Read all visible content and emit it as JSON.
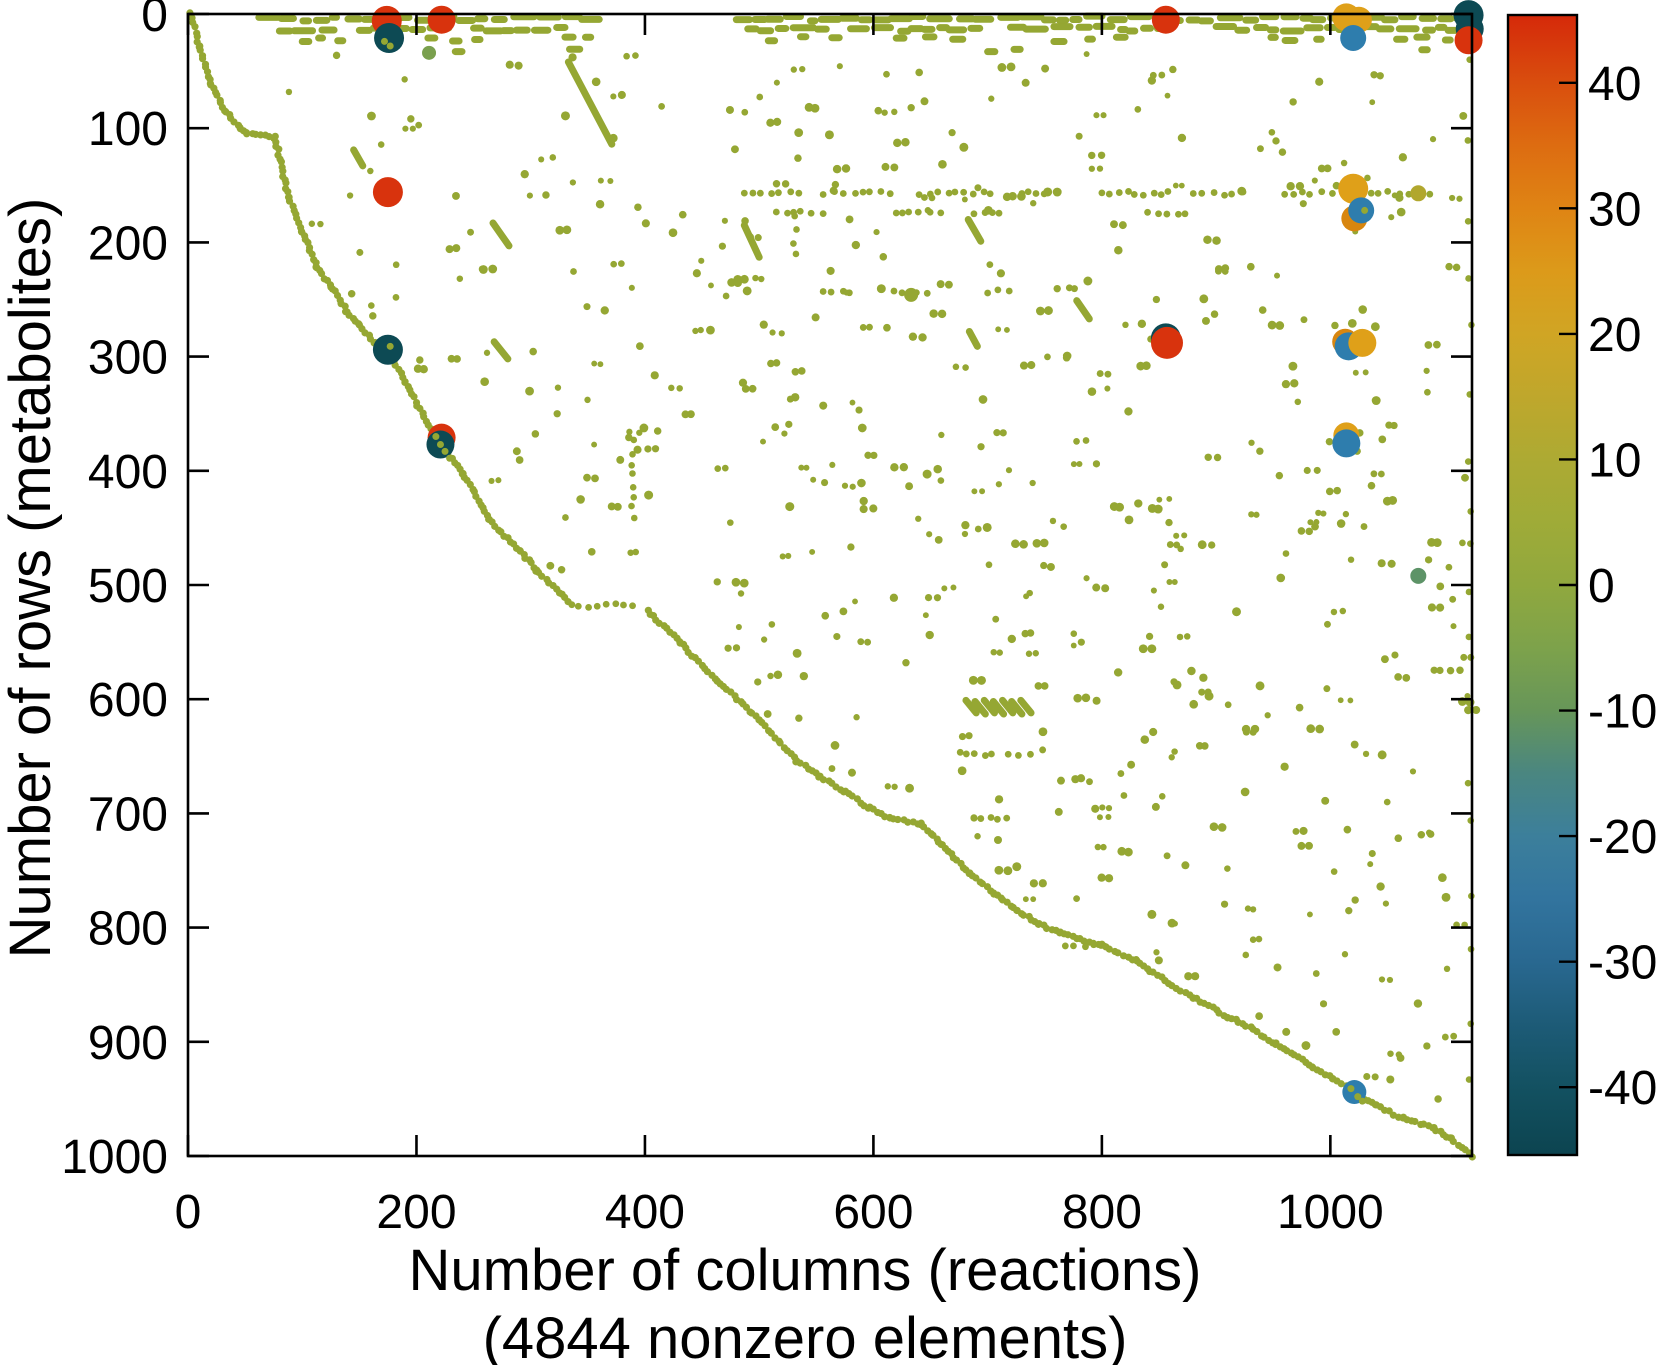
{
  "figure": {
    "background": "#ffffff",
    "text_color": "#000000",
    "xlabel_line1": "Number of columns (reactions)",
    "xlabel_line2": "(4844 nonzero elements)",
    "ylabel": "Number of rows (metabolites)",
    "nonzero_elements": 4844
  },
  "chart_data": {
    "type": "scatter",
    "title": "",
    "xlabel": "Number of columns (reactions) (4844 nonzero elements)",
    "ylabel": "Number of rows (metabolites)",
    "x_range": [
      0,
      1124
    ],
    "y_range": [
      0,
      1000
    ],
    "y_inverted": true,
    "x_ticks": [
      0,
      200,
      400,
      600,
      800,
      1000
    ],
    "y_ticks": [
      0,
      100,
      200,
      300,
      400,
      500,
      600,
      700,
      800,
      900,
      1000
    ],
    "grid": false,
    "legend_position": "none",
    "colorbar": {
      "vmin": -45.4,
      "vmax": 45.4,
      "ticks": [
        40,
        30,
        20,
        10,
        0,
        -10,
        -20,
        -30,
        -40
      ],
      "stops": [
        {
          "v": 45.4,
          "color": "#d5290a"
        },
        {
          "v": 40.0,
          "color": "#d94e0e"
        },
        {
          "v": 35.0,
          "color": "#dd6c11"
        },
        {
          "v": 30.0,
          "color": "#df8414"
        },
        {
          "v": 25.0,
          "color": "#dc9a1a"
        },
        {
          "v": 20.0,
          "color": "#d0a524"
        },
        {
          "v": 15.0,
          "color": "#bfa72c"
        },
        {
          "v": 10.0,
          "color": "#adaa33"
        },
        {
          "v": 5.0,
          "color": "#9fab38"
        },
        {
          "v": 0.0,
          "color": "#90a83e"
        },
        {
          "v": -5.0,
          "color": "#7da24b"
        },
        {
          "v": -10.0,
          "color": "#679659"
        },
        {
          "v": -15.0,
          "color": "#4a8680"
        },
        {
          "v": -20.0,
          "color": "#3c7f9b"
        },
        {
          "v": -25.0,
          "color": "#32749e"
        },
        {
          "v": -30.0,
          "color": "#296890"
        },
        {
          "v": -35.0,
          "color": "#1d5b77"
        },
        {
          "v": -40.0,
          "color": "#135161"
        },
        {
          "v": -45.4,
          "color": "#0c4450"
        }
      ]
    },
    "base_dot_color": "#95a733",
    "special_markers": [
      {
        "x": 174,
        "y": 6,
        "r": 15,
        "value": 45,
        "color": "#d8330d"
      },
      {
        "x": 176,
        "y": 21,
        "r": 15,
        "value": -45,
        "color": "#0d4a54"
      },
      {
        "x": 222,
        "y": 5,
        "r": 14,
        "value": 45,
        "color": "#d8330d"
      },
      {
        "x": 856,
        "y": 5,
        "r": 14,
        "value": 45,
        "color": "#d8330d"
      },
      {
        "x": 1014,
        "y": 3,
        "r": 14,
        "value": 20,
        "color": "#dfa019"
      },
      {
        "x": 1025,
        "y": 5,
        "r": 13,
        "value": 20,
        "color": "#dfa019"
      },
      {
        "x": 1020,
        "y": 21,
        "r": 13,
        "value": -25,
        "color": "#2e7dad"
      },
      {
        "x": 1121,
        "y": 1,
        "r": 15,
        "value": -45,
        "color": "#0d4a54"
      },
      {
        "x": 1122,
        "y": 13,
        "r": 14,
        "value": -45,
        "color": "#0d4a54"
      },
      {
        "x": 1121,
        "y": 23,
        "r": 14,
        "value": 45,
        "color": "#d8330d"
      },
      {
        "x": 175,
        "y": 156,
        "r": 15,
        "value": 45,
        "color": "#d8330d"
      },
      {
        "x": 1020,
        "y": 153,
        "r": 15,
        "value": 20,
        "color": "#dfa019"
      },
      {
        "x": 1021,
        "y": 179,
        "r": 13,
        "value": 17,
        "color": "#d8860f"
      },
      {
        "x": 1027,
        "y": 172,
        "r": 13,
        "value": -25,
        "color": "#2e7dad"
      },
      {
        "x": 175,
        "y": 294,
        "r": 15,
        "value": -45,
        "color": "#0d4a54"
      },
      {
        "x": 856,
        "y": 284,
        "r": 15,
        "value": -45,
        "color": "#0d4a54"
      },
      {
        "x": 857,
        "y": 288,
        "r": 16,
        "value": 45,
        "color": "#d8330d"
      },
      {
        "x": 1013,
        "y": 287,
        "r": 13,
        "value": 17,
        "color": "#d8860f"
      },
      {
        "x": 1016,
        "y": 291,
        "r": 14,
        "value": -25,
        "color": "#2e7dad"
      },
      {
        "x": 1028,
        "y": 288,
        "r": 14,
        "value": 20,
        "color": "#dfa019"
      },
      {
        "x": 222,
        "y": 371,
        "r": 14,
        "value": 45,
        "color": "#d8330d"
      },
      {
        "x": 221,
        "y": 377,
        "r": 14,
        "value": -45,
        "color": "#0d4a54"
      },
      {
        "x": 1014,
        "y": 369,
        "r": 13,
        "value": 20,
        "color": "#dfa019"
      },
      {
        "x": 1014,
        "y": 376,
        "r": 14,
        "value": -25,
        "color": "#2e7dad"
      },
      {
        "x": 1021,
        "y": 944,
        "r": 12,
        "value": -25,
        "color": "#2e7dad"
      },
      {
        "x": 1077,
        "y": 492,
        "r": 8,
        "value": -8,
        "color": "#5d9367"
      }
    ],
    "medium_dots": [
      {
        "x": 211,
        "y": 34,
        "r": 7,
        "color": "#7aa04e"
      },
      {
        "x": 1077,
        "y": 157,
        "r": 8,
        "color": "#b1a72e"
      },
      {
        "x": 633,
        "y": 246,
        "r": 7,
        "color": "#95a733"
      }
    ],
    "overlay_dots": [
      [
        172,
        24
      ],
      [
        177,
        28
      ],
      [
        177,
        291
      ],
      [
        217,
        370
      ],
      [
        221,
        377
      ],
      [
        225,
        383
      ],
      [
        229,
        389
      ],
      [
        1018,
        941
      ],
      [
        1024,
        948
      ],
      [
        1028,
        952
      ],
      [
        1030,
        172
      ]
    ],
    "diagonal_segments": [
      [
        [
          2,
          0
        ],
        [
          10,
          28
        ],
        [
          20,
          62
        ],
        [
          33,
          85
        ],
        [
          46,
          100
        ],
        [
          52,
          104
        ],
        [
          76,
          108
        ],
        [
          88,
          160
        ],
        [
          100,
          190
        ],
        [
          113,
          222
        ],
        [
          126,
          240
        ],
        [
          139,
          260
        ],
        [
          150,
          272
        ],
        [
          163,
          288
        ],
        [
          176,
          298
        ],
        [
          190,
          322
        ],
        [
          205,
          350
        ],
        [
          221,
          377
        ],
        [
          241,
          402
        ],
        [
          264,
          443
        ],
        [
          291,
          470
        ],
        [
          305,
          487
        ],
        [
          333,
          514
        ]
      ],
      [
        [
          402,
          522
        ],
        [
          430,
          550
        ],
        [
          464,
          584
        ],
        [
          500,
          618
        ],
        [
          533,
          654
        ],
        [
          553,
          668
        ],
        [
          575,
          681
        ],
        [
          596,
          695
        ],
        [
          614,
          704
        ],
        [
          642,
          709
        ],
        [
          660,
          728
        ],
        [
          684,
          752
        ],
        [
          705,
          770
        ],
        [
          726,
          785
        ],
        [
          745,
          797
        ],
        [
          763,
          805
        ],
        [
          800,
          815
        ],
        [
          830,
          829
        ],
        [
          855,
          846
        ],
        [
          880,
          861
        ],
        [
          910,
          878
        ],
        [
          930,
          888
        ],
        [
          952,
          902
        ],
        [
          985,
          922
        ],
        [
          1003,
          932
        ],
        [
          1021,
          944
        ],
        [
          1040,
          956
        ],
        [
          1063,
          967
        ],
        [
          1090,
          975
        ],
        [
          1105,
          985
        ],
        [
          1124,
          1000
        ]
      ]
    ],
    "band_rows": [
      {
        "row": 4,
        "spans": [
          [
            62,
            130
          ],
          [
            140,
            360
          ],
          [
            480,
            1124
          ]
        ],
        "style": "dense"
      },
      {
        "row": 13,
        "spans": [
          [
            80,
            130
          ],
          [
            150,
            232
          ],
          [
            250,
            330
          ],
          [
            490,
            560
          ],
          [
            580,
            700
          ],
          [
            720,
            860
          ],
          [
            900,
            1010
          ],
          [
            1030,
            1124
          ]
        ],
        "style": "dense"
      },
      {
        "row": 22,
        "spans": [
          [
            100,
            142
          ],
          [
            210,
            262
          ],
          [
            330,
            362
          ],
          [
            508,
            580
          ],
          [
            620,
            680
          ],
          [
            758,
            830
          ],
          [
            948,
            1020
          ],
          [
            1058,
            1120
          ]
        ],
        "style": "sparse"
      },
      {
        "row": 31,
        "spans": [
          [
            234,
            256
          ],
          [
            334,
            358
          ],
          [
            700,
            730
          ],
          [
            1080,
            1102
          ]
        ],
        "style": "sparse"
      }
    ],
    "dot_rows": [
      {
        "row": 157,
        "spans": [
          [
            487,
            540
          ],
          [
            556,
            622
          ],
          [
            640,
            706
          ],
          [
            730,
            762
          ],
          [
            800,
            860
          ],
          [
            880,
            932
          ],
          [
            960,
            1002
          ],
          [
            1020,
            1092
          ]
        ]
      },
      {
        "row": 174,
        "spans": [
          [
            515,
            562
          ],
          [
            620,
            662
          ],
          [
            688,
            714
          ],
          [
            840,
            882
          ]
        ]
      },
      {
        "row": 243,
        "spans": [
          [
            556,
            586
          ],
          [
            618,
            652
          ],
          [
            700,
            722
          ]
        ]
      },
      {
        "row": 518,
        "spans": [
          [
            336,
            398
          ]
        ]
      },
      {
        "row": 648,
        "spans": [
          [
            676,
            708
          ],
          [
            718,
            744
          ]
        ]
      },
      {
        "row": 704,
        "spans": [
          [
            688,
            726
          ]
        ]
      },
      {
        "row": 815,
        "spans": [
          [
            768,
            804
          ]
        ]
      }
    ],
    "dot_cols": [
      {
        "col": 531,
        "spans": [
          [
            177,
            216
          ]
        ],
        "sparse": false
      },
      {
        "col": 389,
        "spans": [
          [
            373,
            444
          ]
        ],
        "sparse": false
      },
      {
        "col": 1122,
        "spans": [
          [
            40,
            996
          ]
        ],
        "sparse": true
      }
    ],
    "dashes": [
      [
        333,
        42,
        371,
        114
      ],
      [
        487,
        185,
        500,
        213
      ],
      [
        683,
        180,
        694,
        199
      ],
      [
        778,
        251,
        789,
        267
      ],
      [
        267,
        183,
        281,
        203
      ],
      [
        268,
        287,
        280,
        302
      ],
      [
        684,
        278,
        691,
        291
      ],
      [
        145,
        119,
        153,
        133
      ],
      [
        681,
        601,
        690,
        612
      ],
      [
        689,
        602,
        698,
        613
      ],
      [
        697,
        601,
        706,
        612
      ],
      [
        705,
        602,
        714,
        613
      ],
      [
        713,
        601,
        722,
        612
      ],
      [
        721,
        602,
        730,
        613
      ],
      [
        729,
        601,
        738,
        612
      ]
    ],
    "random_dots": {
      "seed": 20240601,
      "count": 520,
      "x_min": 60,
      "x_max": 1122,
      "y_min": 34,
      "y_max": 995,
      "margin": 12
    }
  }
}
